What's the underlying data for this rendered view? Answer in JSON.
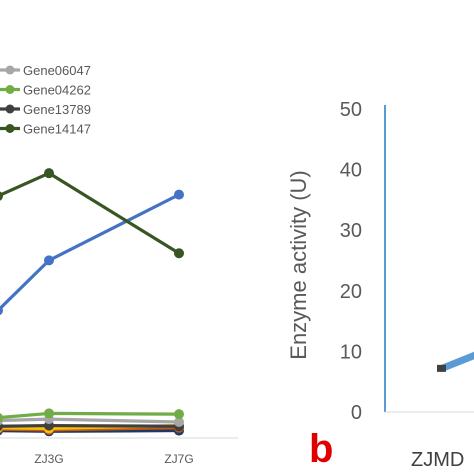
{
  "chart_data": [
    {
      "type": "line",
      "title": "",
      "xlabel": "",
      "ylabel": "",
      "categories": [
        "",
        "ZJ3G",
        "ZJ7G"
      ],
      "legend_placement": "top-left",
      "grid": false,
      "ylim": [
        0,
        45
      ],
      "series": [
        {
          "name": "Gene06047",
          "color": "#a6a6a6",
          "values": [
            1.6,
            1.8,
            1.4
          ],
          "in_legend": true
        },
        {
          "name": "Gene04262",
          "color": "#70ad47",
          "values": [
            2.0,
            2.6,
            2.5
          ],
          "in_legend": true
        },
        {
          "name": "Gene13789",
          "color": "#404040",
          "values": [
            0.8,
            0.9,
            0.8
          ],
          "in_legend": true
        },
        {
          "name": "Gene14147",
          "color": "#375623",
          "values": [
            33.0,
            36.2,
            25.0
          ],
          "in_legend": true
        },
        {
          "name": "",
          "color": "#4472c4",
          "values": [
            17.0,
            24.0,
            33.2
          ],
          "in_legend": false
        },
        {
          "name": "",
          "color": "#ffc000",
          "values": [
            0.6,
            0.5,
            0.9
          ],
          "in_legend": false
        },
        {
          "name": "",
          "color": "#c55a11",
          "values": [
            0.4,
            0.3,
            0.6
          ],
          "in_legend": false
        },
        {
          "name": "",
          "color": "#1f3864",
          "values": [
            0.2,
            0.1,
            0.2
          ],
          "in_legend": false
        }
      ]
    },
    {
      "type": "line",
      "panel_label": "b",
      "title": "",
      "ylabel": "Enzyme activity (U)",
      "xlabel": "",
      "categories": [
        "ZJMD"
      ],
      "ylim": [
        0,
        50
      ],
      "yticks": [
        0,
        10,
        20,
        30,
        40,
        50
      ],
      "grid": false,
      "series": [
        {
          "name": "",
          "color": "#5b9bd5",
          "values": [
            7.2
          ]
        }
      ]
    }
  ]
}
